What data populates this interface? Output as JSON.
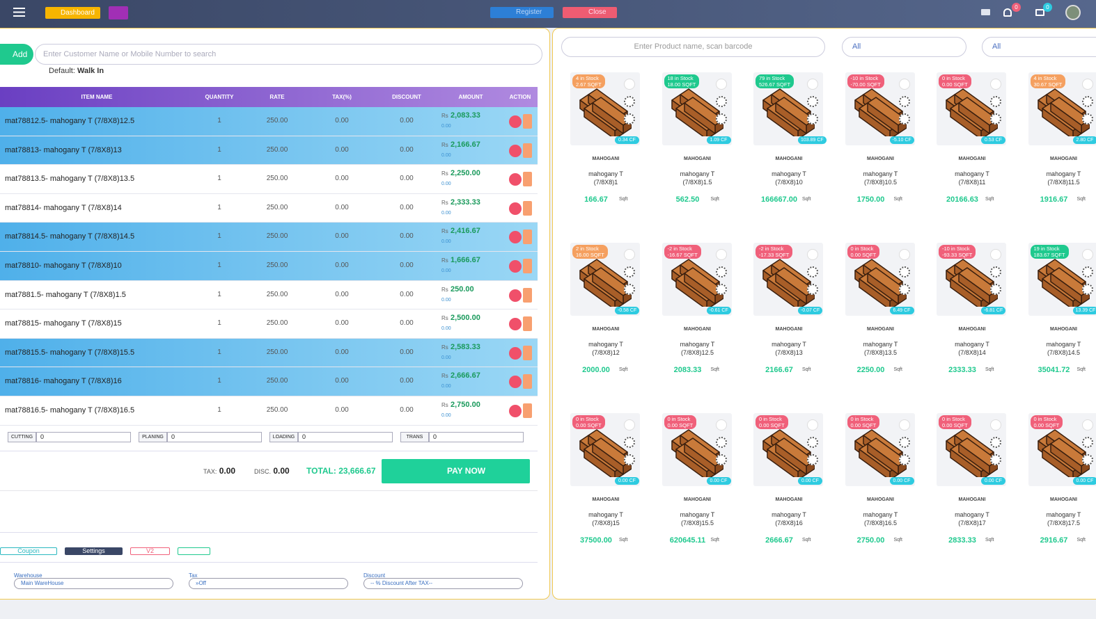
{
  "header": {
    "dashboard": "Dashboard",
    "register": "Register",
    "close": "Close",
    "notifications": "0",
    "messages": "0"
  },
  "customer": {
    "add": "Add",
    "placeholder": "Enter Customer Name or Mobile Number to search",
    "default_label": "Default:",
    "default_value": "Walk In"
  },
  "table": {
    "columns": [
      "ITEM NAME",
      "QUANTITY",
      "RATE",
      "TAX(%)",
      "DISCOUNT",
      "AMOUNT",
      "ACTION"
    ],
    "rows": [
      {
        "name": "mat78812.5- mahogany T (7/8X8)12.5",
        "quantity": "1",
        "rate": "250.00",
        "tax": "0.00",
        "discount": "0.00",
        "currency": "Rs",
        "amount": "2,083.33",
        "amount_sub": "0.00",
        "highlight": true
      },
      {
        "name": "mat78813- mahogany T (7/8X8)13",
        "quantity": "1",
        "rate": "250.00",
        "tax": "0.00",
        "discount": "0.00",
        "currency": "Rs",
        "amount": "2,166.67",
        "amount_sub": "0.00",
        "highlight": true
      },
      {
        "name": "mat78813.5- mahogany T (7/8X8)13.5",
        "quantity": "1",
        "rate": "250.00",
        "tax": "0.00",
        "discount": "0.00",
        "currency": "Rs",
        "amount": "2,250.00",
        "amount_sub": "0.00",
        "highlight": false
      },
      {
        "name": "mat78814- mahogany T (7/8X8)14",
        "quantity": "1",
        "rate": "250.00",
        "tax": "0.00",
        "discount": "0.00",
        "currency": "Rs",
        "amount": "2,333.33",
        "amount_sub": "0.00",
        "highlight": false
      },
      {
        "name": "mat78814.5- mahogany T (7/8X8)14.5",
        "quantity": "1",
        "rate": "250.00",
        "tax": "0.00",
        "discount": "0.00",
        "currency": "Rs",
        "amount": "2,416.67",
        "amount_sub": "0.00",
        "highlight": true
      },
      {
        "name": "mat78810- mahogany T (7/8X8)10",
        "quantity": "1",
        "rate": "250.00",
        "tax": "0.00",
        "discount": "0.00",
        "currency": "Rs",
        "amount": "1,666.67",
        "amount_sub": "0.00",
        "highlight": true
      },
      {
        "name": "mat7881.5- mahogany T (7/8X8)1.5",
        "quantity": "1",
        "rate": "250.00",
        "tax": "0.00",
        "discount": "0.00",
        "currency": "Rs",
        "amount": "250.00",
        "amount_sub": "0.00",
        "highlight": false
      },
      {
        "name": "mat78815- mahogany T (7/8X8)15",
        "quantity": "1",
        "rate": "250.00",
        "tax": "0.00",
        "discount": "0.00",
        "currency": "Rs",
        "amount": "2,500.00",
        "amount_sub": "0.00",
        "highlight": false
      },
      {
        "name": "mat78815.5- mahogany T (7/8X8)15.5",
        "quantity": "1",
        "rate": "250.00",
        "tax": "0.00",
        "discount": "0.00",
        "currency": "Rs",
        "amount": "2,583.33",
        "amount_sub": "0.00",
        "highlight": true
      },
      {
        "name": "mat78816- mahogany T (7/8X8)16",
        "quantity": "1",
        "rate": "250.00",
        "tax": "0.00",
        "discount": "0.00",
        "currency": "Rs",
        "amount": "2,666.67",
        "amount_sub": "0.00",
        "highlight": true
      },
      {
        "name": "mat78816.5- mahogany T (7/8X8)16.5",
        "quantity": "1",
        "rate": "250.00",
        "tax": "0.00",
        "discount": "0.00",
        "currency": "Rs",
        "amount": "2,750.00",
        "amount_sub": "0.00",
        "highlight": false
      }
    ]
  },
  "charges": [
    {
      "label": "CUTTING",
      "value": "0"
    },
    {
      "label": "PLANING",
      "value": "0"
    },
    {
      "label": "LOADING",
      "value": "0"
    },
    {
      "label": "TRANS",
      "value": "0"
    }
  ],
  "totals": {
    "tax_label": "TAX:",
    "tax": "0.00",
    "disc_label": "DISC.",
    "disc": "0.00",
    "total": "TOTAL: 23,666.67",
    "pay": "PAY NOW"
  },
  "footer": {
    "buttons": [
      "Coupon",
      "Settings",
      "V2"
    ],
    "selects": [
      {
        "label": "Warehouse",
        "value": "Main WareHouse"
      },
      {
        "label": "Tax",
        "value": "»Off"
      },
      {
        "label": "Discount",
        "value": "-- % Discount After TAX--"
      }
    ]
  },
  "products": {
    "search": "Enter Product name, scan barcode",
    "filters": [
      "All",
      "All"
    ],
    "items": [
      {
        "stock": "4 in Stock",
        "stock_sqft": "2.67 SQFT",
        "color": "#f5a060",
        "cf": "0.34 CF",
        "category": "MAHOGANI",
        "name_line1": "mahogany T",
        "name_line2": "(7/8X8)1",
        "price": "166.67",
        "unit": "Sqft"
      },
      {
        "stock": "18 in Stock",
        "stock_sqft": "18.00 SQFT",
        "color": "#1fc98e",
        "cf": "1.09 CF",
        "category": "MAHOGANI",
        "name_line1": "mahogany T",
        "name_line2": "(7/8X8)1.5",
        "price": "562.50",
        "unit": "Sqft"
      },
      {
        "stock": "79 in Stock",
        "stock_sqft": "526.67 SQFT",
        "color": "#1fc98e",
        "cf": "103.89 CF",
        "category": "MAHOGANI",
        "name_line1": "mahogany T",
        "name_line2": "(7/8X8)10",
        "price": "166667.00",
        "unit": "Sqft"
      },
      {
        "stock": "-10 in Stock",
        "stock_sqft": "-70.00 SQFT",
        "color": "#f0607a",
        "cf": "-5.10 CF",
        "category": "MAHOGANI",
        "name_line1": "mahogany T",
        "name_line2": "(7/8X8)10.5",
        "price": "1750.00",
        "unit": "Sqft"
      },
      {
        "stock": "0 in Stock",
        "stock_sqft": "0.00 SQFT",
        "color": "#f0607a",
        "cf": "0.53 CF",
        "category": "MAHOGANI",
        "name_line1": "mahogany T",
        "name_line2": "(7/8X8)11",
        "price": "20166.63",
        "unit": "Sqft"
      },
      {
        "stock": "4 in Stock",
        "stock_sqft": "30.67 SQFT",
        "color": "#f5a060",
        "cf": "2.80 CF",
        "category": "MAHOGANI",
        "name_line1": "mahogany T",
        "name_line2": "(7/8X8)11.5",
        "price": "1916.67",
        "unit": "Sqft"
      },
      {
        "stock": "2 in Stock",
        "stock_sqft": "16.00 SQFT",
        "color": "#f5a060",
        "cf": "-0.58 CF",
        "category": "MAHOGANI",
        "name_line1": "mahogany T",
        "name_line2": "(7/8X8)12",
        "price": "2000.00",
        "unit": "Sqft"
      },
      {
        "stock": "-2 in Stock",
        "stock_sqft": "-16.67 SQFT",
        "color": "#f0607a",
        "cf": "-0.61 CF",
        "category": "MAHOGANI",
        "name_line1": "mahogany T",
        "name_line2": "(7/8X8)12.5",
        "price": "2083.33",
        "unit": "Sqft"
      },
      {
        "stock": "-2 in Stock",
        "stock_sqft": "-17.33 SQFT",
        "color": "#f0607a",
        "cf": "-0.07 CF",
        "category": "MAHOGANI",
        "name_line1": "mahogany T",
        "name_line2": "(7/8X8)13",
        "price": "2166.67",
        "unit": "Sqft"
      },
      {
        "stock": "0 in Stock",
        "stock_sqft": "0.00 SQFT",
        "color": "#f0607a",
        "cf": "6.49 CF",
        "category": "MAHOGANI",
        "name_line1": "mahogany T",
        "name_line2": "(7/8X8)13.5",
        "price": "2250.00",
        "unit": "Sqft"
      },
      {
        "stock": "-10 in Stock",
        "stock_sqft": "-93.33 SQFT",
        "color": "#f0607a",
        "cf": "-6.81 CF",
        "category": "MAHOGANI",
        "name_line1": "mahogany T",
        "name_line2": "(7/8X8)14",
        "price": "2333.33",
        "unit": "Sqft"
      },
      {
        "stock": "19 in Stock",
        "stock_sqft": "183.67 SQFT",
        "color": "#1fc98e",
        "cf": "13.39 CF",
        "category": "MAHOGANI",
        "name_line1": "mahogany T",
        "name_line2": "(7/8X8)14.5",
        "price": "35041.72",
        "unit": "Sqft"
      },
      {
        "stock": "0 in Stock",
        "stock_sqft": "0.00 SQFT",
        "color": "#f0607a",
        "cf": "0.00 CF",
        "category": "MAHOGANI",
        "name_line1": "mahogany T",
        "name_line2": "(7/8X8)15",
        "price": "37500.00",
        "unit": "Sqft"
      },
      {
        "stock": "0 in Stock",
        "stock_sqft": "0.00 SQFT",
        "color": "#f0607a",
        "cf": "0.00 CF",
        "category": "MAHOGANI",
        "name_line1": "mahogany T",
        "name_line2": "(7/8X8)15.5",
        "price": "620645.11",
        "unit": "Sqft"
      },
      {
        "stock": "0 in Stock",
        "stock_sqft": "0.00 SQFT",
        "color": "#f0607a",
        "cf": "0.00 CF",
        "category": "MAHOGANI",
        "name_line1": "mahogany T",
        "name_line2": "(7/8X8)16",
        "price": "2666.67",
        "unit": "Sqft"
      },
      {
        "stock": "0 in Stock",
        "stock_sqft": "0.00 SQFT",
        "color": "#f0607a",
        "cf": "0.00 CF",
        "category": "MAHOGANI",
        "name_line1": "mahogany T",
        "name_line2": "(7/8X8)16.5",
        "price": "2750.00",
        "unit": "Sqft"
      },
      {
        "stock": "0 in Stock",
        "stock_sqft": "0.00 SQFT",
        "color": "#f0607a",
        "cf": "0.00 CF",
        "category": "MAHOGANI",
        "name_line1": "mahogany T",
        "name_line2": "(7/8X8)17",
        "price": "2833.33",
        "unit": "Sqft"
      },
      {
        "stock": "0 in Stock",
        "stock_sqft": "0.00 SQFT",
        "color": "#f0607a",
        "cf": "0.00 CF",
        "category": "MAHOGANI",
        "name_line1": "mahogany T",
        "name_line2": "(7/8X8)17.5",
        "price": "2916.67",
        "unit": "Sqft"
      }
    ]
  }
}
